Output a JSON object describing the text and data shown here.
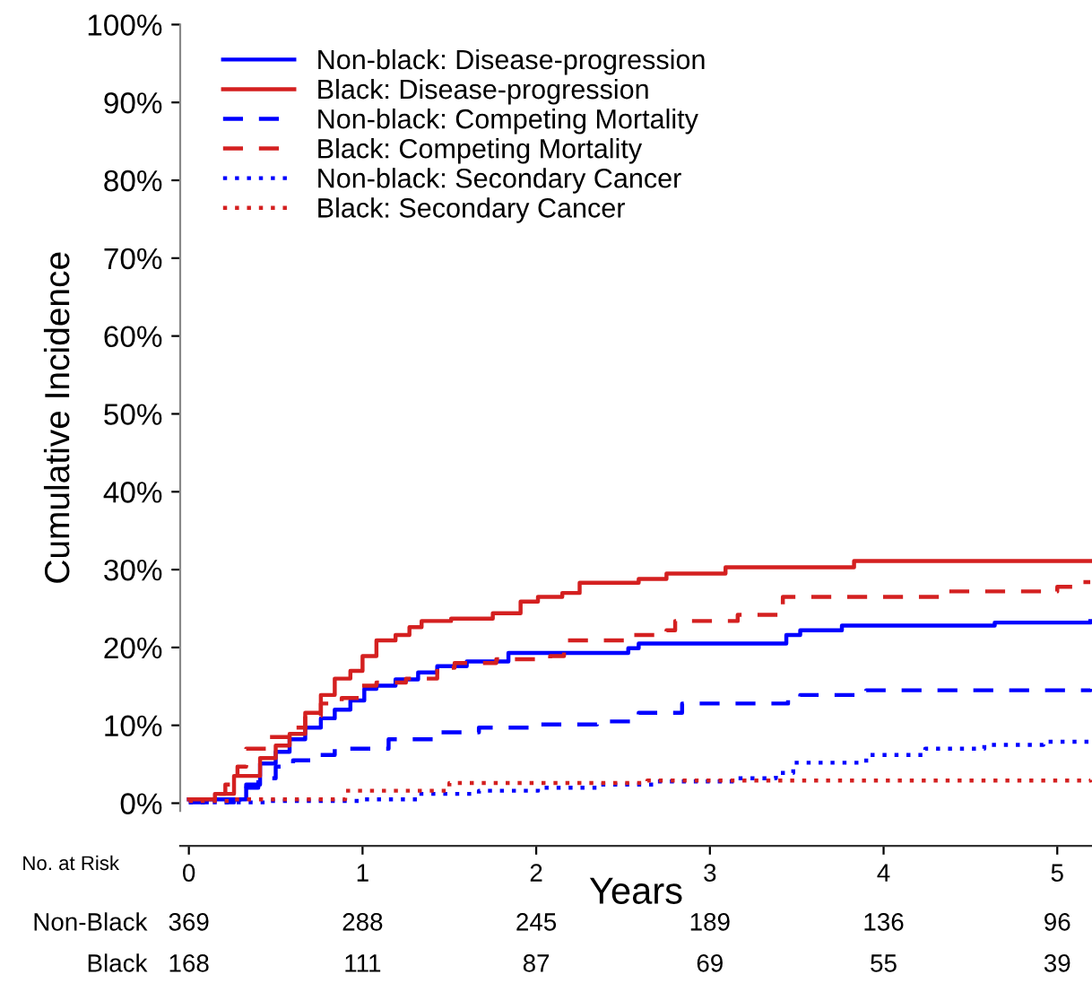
{
  "chart_data": {
    "type": "step",
    "xlabel": "Years",
    "ylabel": "Cumulative Incidence",
    "xlim": [
      -0.05,
      5.2
    ],
    "ylim": [
      -1,
      100
    ],
    "xticks": [
      0,
      1,
      2,
      3,
      4,
      5
    ],
    "yticks": [
      {
        "value": 0,
        "label": "0%"
      },
      {
        "value": 10,
        "label": "10%"
      },
      {
        "value": 20,
        "label": "20%"
      },
      {
        "value": 30,
        "label": "30%"
      },
      {
        "value": 40,
        "label": "40%"
      },
      {
        "value": 50,
        "label": "50%"
      },
      {
        "value": 60,
        "label": "60%"
      },
      {
        "value": 70,
        "label": "70%"
      },
      {
        "value": 80,
        "label": "80%"
      },
      {
        "value": 90,
        "label": "90%"
      },
      {
        "value": 100,
        "label": "100%"
      }
    ],
    "grid": false,
    "legend": "top left",
    "marker": "none",
    "series": [
      {
        "name": "Non-black: Disease-progression",
        "color": "#0000ff",
        "line_style": "solid",
        "x": [
          0,
          0.26,
          0.33,
          0.41,
          0.5,
          0.58,
          0.67,
          0.76,
          0.84,
          0.93,
          1.01,
          1.08,
          1.19,
          1.32,
          1.43,
          1.6,
          1.84,
          2.53,
          2.59,
          3.44,
          3.52,
          3.76,
          4.64,
          5.19
        ],
        "values": [
          0.5,
          0.5,
          2.4,
          5.1,
          6.6,
          8.2,
          9.7,
          10.9,
          12.0,
          13.2,
          14.7,
          15.1,
          15.9,
          16.8,
          17.6,
          18.2,
          19.3,
          19.9,
          20.5,
          21.6,
          22.2,
          22.8,
          23.2,
          23.4
        ]
      },
      {
        "name": "Black: Disease-progression",
        "color": "#d42020",
        "line_style": "solid",
        "x": [
          0,
          0.15,
          0.26,
          0.41,
          0.5,
          0.58,
          0.67,
          0.76,
          0.84,
          0.93,
          1.0,
          1.08,
          1.19,
          1.27,
          1.34,
          1.51,
          1.75,
          1.91,
          2.01,
          2.15,
          2.25,
          2.59,
          2.75,
          3.09,
          3.83,
          5.19
        ],
        "values": [
          0.5,
          1.2,
          3.5,
          5.8,
          7.4,
          8.9,
          11.6,
          13.9,
          16.0,
          17.0,
          18.9,
          20.9,
          21.6,
          22.6,
          23.4,
          23.7,
          24.4,
          25.9,
          26.5,
          27.0,
          28.3,
          28.8,
          29.5,
          30.3,
          31.1,
          31.1
        ]
      },
      {
        "name": "Non-black: Competing Mortality",
        "color": "#0000ff",
        "line_style": "dashed",
        "x": [
          0,
          0.26,
          0.33,
          0.4,
          0.5,
          0.6,
          0.74,
          0.84,
          1.15,
          1.43,
          1.67,
          2.01,
          2.35,
          2.59,
          2.84,
          3.45,
          3.52,
          3.9,
          5.19
        ],
        "values": [
          0.1,
          0.5,
          2.0,
          3.2,
          4.7,
          5.5,
          6.2,
          7.0,
          8.2,
          9.1,
          9.7,
          10.1,
          10.5,
          11.6,
          12.8,
          13.5,
          13.9,
          14.5,
          14.7
        ]
      },
      {
        "name": "Black: Competing Mortality",
        "color": "#d42020",
        "line_style": "dashed",
        "x": [
          0,
          0.12,
          0.21,
          0.28,
          0.33,
          0.46,
          0.58,
          0.67,
          0.76,
          0.88,
          0.98,
          1.08,
          1.25,
          1.43,
          1.53,
          1.77,
          2.08,
          2.16,
          2.53,
          2.75,
          2.8,
          3.16,
          3.42,
          4.33,
          5.0,
          5.14,
          5.19
        ],
        "values": [
          0.5,
          1.2,
          2.4,
          4.7,
          7.0,
          8.5,
          9.7,
          11.2,
          12.8,
          13.5,
          15.1,
          15.5,
          16.0,
          17.4,
          18.0,
          18.5,
          18.9,
          20.9,
          21.6,
          22.2,
          23.4,
          24.2,
          26.5,
          27.2,
          27.8,
          28.4,
          28.4
        ]
      },
      {
        "name": "Non-black: Secondary Cancer",
        "color": "#0000ff",
        "line_style": "dotted",
        "x": [
          0,
          0.46,
          0.98,
          1.32,
          1.67,
          2.01,
          2.35,
          2.7,
          3.15,
          3.38,
          3.48,
          3.9,
          4.24,
          4.58,
          4.92,
          5.19
        ],
        "values": [
          0.1,
          0.3,
          0.5,
          1.2,
          1.6,
          2.0,
          2.4,
          2.8,
          3.2,
          3.9,
          5.2,
          6.2,
          7.0,
          7.5,
          7.9,
          8.0
        ]
      },
      {
        "name": "Black: Secondary Cancer",
        "color": "#d42020",
        "line_style": "dotted",
        "x": [
          0,
          0.23,
          0.9,
          1.5,
          2.64,
          5.19
        ],
        "values": [
          0.3,
          0.5,
          1.6,
          2.6,
          2.9,
          3.0
        ]
      }
    ],
    "annotations": [
      "No. at Risk",
      "Non-Black",
      "369",
      "288",
      "245",
      "189",
      "136",
      "96",
      "Black",
      "168",
      "111",
      "87",
      "69",
      "55",
      "39"
    ]
  }
}
